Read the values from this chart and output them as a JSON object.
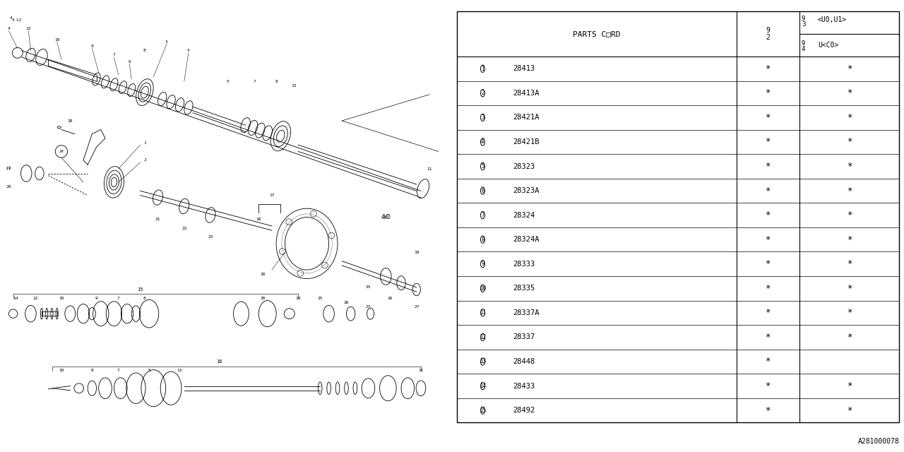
{
  "bg_color": "#ffffff",
  "diagram_ref": "A281000078",
  "table": {
    "title": "PARTS C□RD",
    "rows": [
      {
        "num": 1,
        "code": "28413",
        "c1": true,
        "c2": true
      },
      {
        "num": 2,
        "code": "28413A",
        "c1": true,
        "c2": true
      },
      {
        "num": 3,
        "code": "28421A",
        "c1": true,
        "c2": true
      },
      {
        "num": 4,
        "code": "28421B",
        "c1": true,
        "c2": true
      },
      {
        "num": 5,
        "code": "28323",
        "c1": true,
        "c2": true
      },
      {
        "num": 6,
        "code": "28323A",
        "c1": true,
        "c2": true
      },
      {
        "num": 7,
        "code": "28324",
        "c1": true,
        "c2": true
      },
      {
        "num": 8,
        "code": "28324A",
        "c1": true,
        "c2": true
      },
      {
        "num": 9,
        "code": "28333",
        "c1": true,
        "c2": true
      },
      {
        "num": 10,
        "code": "28335",
        "c1": true,
        "c2": true
      },
      {
        "num": 11,
        "code": "28337A",
        "c1": true,
        "c2": true
      },
      {
        "num": 12,
        "code": "28337",
        "c1": true,
        "c2": true
      },
      {
        "num": 13,
        "code": "28448",
        "c1": true,
        "c2": false
      },
      {
        "num": 14,
        "code": "28433",
        "c1": true,
        "c2": true
      },
      {
        "num": 15,
        "code": "28492",
        "c1": true,
        "c2": true
      }
    ]
  },
  "font_color": "#000000",
  "line_color": "#000000"
}
